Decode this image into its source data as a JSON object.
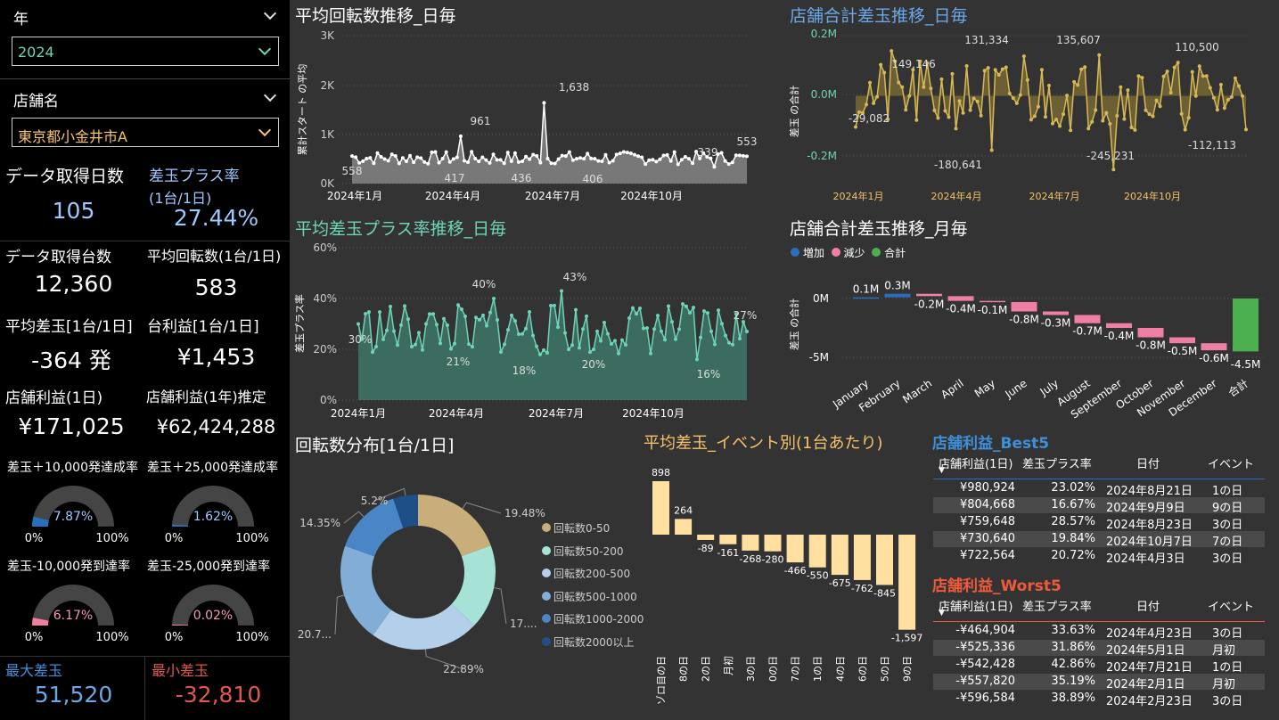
{
  "slicers": {
    "year_label": "年",
    "year_value": "2024",
    "store_label": "店舗名",
    "store_value": "東京都小金井市A"
  },
  "kpi": {
    "days_t": "データ取得日数",
    "days_v": "105",
    "plusrate_t": "差玉プラス率",
    "plusrate_t2": "(1台/1日)",
    "plusrate_v": "27.44%",
    "units_t": "データ取得台数",
    "units_v": "12,360",
    "avgspin_t": "平均回転数(1台/1日)",
    "avgspin_v": "583",
    "avgdiff_t": "平均差玉[1台/1日]",
    "avgdiff_v": "-364 発",
    "profit_t": "台利益[1台/1日]",
    "profit_v": "¥1,453",
    "store1d_t": "店舗利益(1日)",
    "store1d_v": "¥171,025",
    "store1y_t": "店舗利益(1年)推定",
    "store1y_v": "¥62,424,288",
    "max_t": "最大差玉",
    "max_v": "51,520",
    "min_t": "最小差玉",
    "min_v": "-32,810"
  },
  "gauges": [
    {
      "title": "差玉＋10,000発達成率",
      "value": "7.87%",
      "fraction": 0.0787,
      "color": "#2a6fbd",
      "min": "0%",
      "max": "100%"
    },
    {
      "title": "差玉＋25,000発達成率",
      "value": "1.62%",
      "fraction": 0.0162,
      "color": "#2a6fbd",
      "min": "0%",
      "max": "100%"
    },
    {
      "title": "差玉-10,000発到達率",
      "value": "6.17%",
      "fraction": 0.0617,
      "color": "#f07fa6",
      "min": "0%",
      "max": "100%"
    },
    {
      "title": "差玉-25,000発到達率",
      "value": "0.02%",
      "fraction": 0.0002,
      "color": "#f07fa6",
      "min": "0%",
      "max": "100%"
    }
  ],
  "charts": {
    "spin": {
      "title": "平均回転数推移_日毎",
      "ylabel": "累計スタート の平均",
      "yticks": [
        "0K",
        "1K",
        "2K",
        "3K"
      ],
      "xticks": [
        "2024年1月",
        "2024年4月",
        "2024年7月",
        "2024年10月"
      ],
      "labels": [
        "558",
        "961",
        "417",
        "436",
        "1,638",
        "406",
        "339",
        "553"
      ]
    },
    "diff": {
      "title": "店舗合計差玉推移_日毎",
      "ylabel": "差玉 の合計",
      "yticks": [
        "0.2M",
        "0.0M",
        "-0.2M"
      ],
      "xticks": [
        "2024年1月",
        "2024年4月",
        "2024年7月",
        "2024年10月"
      ],
      "labels": [
        "149,146",
        "131,334",
        "135,607",
        "110,500",
        "-29,082",
        "-180,641",
        "-245,231",
        "-112,113"
      ]
    },
    "rate": {
      "title": "平均差玉プラス率推移_日毎",
      "ylabel": "差玉プラス率",
      "yticks": [
        "60%",
        "40%",
        "20%",
        "0%"
      ],
      "xticks": [
        "2024年1月",
        "2024年4月",
        "2024年7月",
        "2024年10月"
      ],
      "labels": [
        "30%",
        "40%",
        "21%",
        "18%",
        "43%",
        "20%",
        "16%",
        "27%"
      ]
    },
    "monthly": {
      "title": "店舗合計差玉推移_月毎",
      "ylabel": "差玉 の合計",
      "legend": [
        "増加",
        "減少",
        "合計"
      ],
      "yticks": [
        "0M",
        "-5M"
      ],
      "months": [
        "January",
        "February",
        "March",
        "April",
        "May",
        "June",
        "July",
        "August",
        "September",
        "October",
        "November",
        "December",
        "合計"
      ],
      "values": [
        0.1,
        0.3,
        -0.2,
        -0.4,
        -0.1,
        -0.8,
        -0.3,
        -0.7,
        -0.4,
        -0.8,
        -0.5,
        -0.6,
        -4.5
      ],
      "labels": [
        "0.1M",
        "0.3M",
        "-0.2M",
        "-0.4M",
        "-0.1M",
        "-0.8M",
        "-0.3M",
        "-0.7M",
        "-0.4M",
        "-0.8M",
        "-0.5M",
        "-0.6M",
        "-4.5M"
      ]
    },
    "donut": {
      "title": "回転数分布[1台/1日]",
      "slices": [
        {
          "name": "回転数0-50",
          "value": 19.48,
          "label": "19.48%",
          "color": "#c7ae7a"
        },
        {
          "name": "回転数50-200",
          "value": 17.68,
          "label": "17....",
          "color": "#a6e3d6"
        },
        {
          "name": "回転数200-500",
          "value": 22.89,
          "label": "22.89%",
          "color": "#b4cfe9"
        },
        {
          "name": "回転数500-1000",
          "value": 20.7,
          "label": "20.7...",
          "color": "#82add6"
        },
        {
          "name": "回転数1000-2000",
          "value": 14.35,
          "label": "14.35%",
          "color": "#4a86c6"
        },
        {
          "name": "回転数2000以上",
          "value": 5.2,
          "label": "5.2%",
          "color": "#1e4f86"
        }
      ]
    },
    "event": {
      "title": "平均差玉_イベント別(1台あたり)",
      "categories": [
        "ゾロ目の日",
        "8の日",
        "2の日",
        "月初",
        "3の日",
        "0の日",
        "7の日",
        "1の日",
        "4の日",
        "6の日",
        "5の日",
        "9の日"
      ],
      "values": [
        898,
        264,
        -89,
        -161,
        -268,
        -280,
        -466,
        -550,
        -675,
        -762,
        -845,
        -1597
      ],
      "labels": [
        "898",
        "264",
        "-89",
        "-161",
        "-268",
        "-280",
        "-466",
        "-550",
        "-675",
        "-762",
        "-845",
        "-1,597"
      ]
    }
  },
  "best": {
    "title": "店舗利益_Best5",
    "headers": [
      "店舗利益(1日)",
      "差玉プラス率",
      "日付",
      "イベント"
    ],
    "rows": [
      [
        "¥980,924",
        "23.02%",
        "2024年8月21日",
        "1の日"
      ],
      [
        "¥804,668",
        "16.67%",
        "2024年9月9日",
        "9の日"
      ],
      [
        "¥759,648",
        "28.57%",
        "2024年8月23日",
        "3の日"
      ],
      [
        "¥730,640",
        "19.84%",
        "2024年10月7日",
        "7の日"
      ],
      [
        "¥722,564",
        "20.72%",
        "2024年4月3日",
        "3の日"
      ]
    ]
  },
  "worst": {
    "title": "店舗利益_Worst5",
    "headers": [
      "店舗利益(1日)",
      "差玉プラス率",
      "日付",
      "イベント"
    ],
    "rows": [
      [
        "-¥464,904",
        "33.63%",
        "2024年4月23日",
        "3の日"
      ],
      [
        "-¥525,336",
        "31.86%",
        "2024年5月1日",
        "月初"
      ],
      [
        "-¥542,428",
        "42.86%",
        "2024年7月21日",
        "1の日"
      ],
      [
        "-¥557,820",
        "35.19%",
        "2024年2月1日",
        "月初"
      ],
      [
        "-¥596,584",
        "38.89%",
        "2024年2月23日",
        "3の日"
      ]
    ]
  }
}
